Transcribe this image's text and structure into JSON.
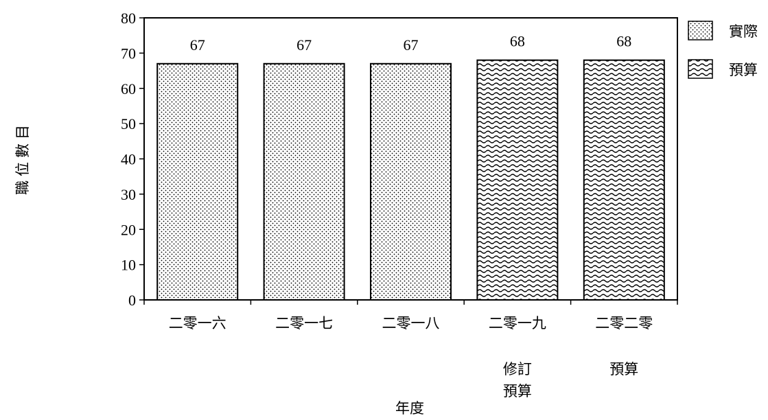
{
  "chart_data": {
    "type": "bar",
    "categories": [
      "二零一六",
      "二零一七",
      "二零一八",
      "二零一九",
      "二零二零"
    ],
    "sublabels": [
      "",
      "",
      "",
      "修訂\n預算",
      "預算"
    ],
    "values": [
      67,
      67,
      67,
      68,
      68
    ],
    "series_of_bar": [
      "實際",
      "實際",
      "實際",
      "預算",
      "預算"
    ],
    "series": [
      {
        "name": "實際",
        "pattern": "dots"
      },
      {
        "name": "預算",
        "pattern": "waves"
      }
    ],
    "xlabel": "年度",
    "ylabel": "職位數目",
    "ylim": [
      0,
      80
    ],
    "yticks": [
      0,
      10,
      20,
      30,
      40,
      50,
      60,
      70,
      80
    ],
    "grid": false,
    "legend_position": "right",
    "colors": {
      "bar_border": "#000000",
      "pattern_ink": "#000000",
      "background": "#ffffff"
    }
  }
}
